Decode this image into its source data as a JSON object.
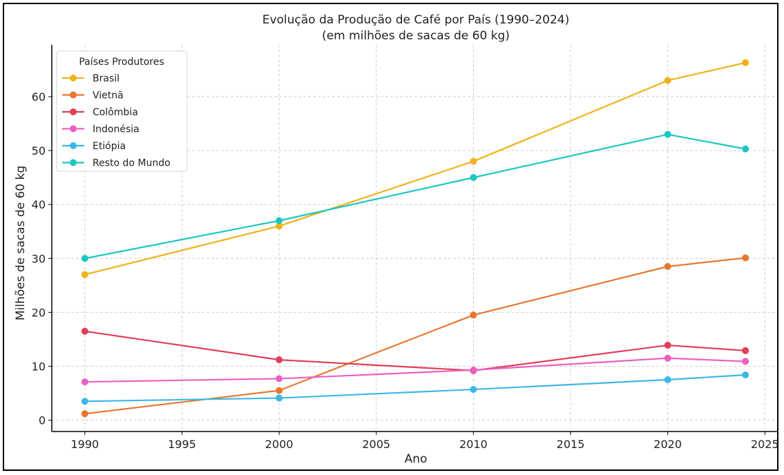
{
  "chart_data": {
    "type": "line",
    "title": "Evolução da Produção de Café por País (1990–2024)",
    "subtitle": "(em milhões de sacas de 60 kg)",
    "xlabel": "Ano",
    "ylabel": "Milhões de sacas de 60 kg",
    "xlim": [
      1988.3,
      2025.7
    ],
    "ylim": [
      -2.1,
      69.6
    ],
    "xticks": [
      1990,
      1995,
      2000,
      2005,
      2010,
      2015,
      2020,
      2025
    ],
    "yticks": [
      0,
      10,
      20,
      30,
      40,
      50,
      60
    ],
    "grid": true,
    "legend": {
      "title": "Países Produtores",
      "placement": "top-left"
    },
    "x": [
      1990,
      2000,
      2010,
      2020,
      2024
    ],
    "series": [
      {
        "name": "Brasil",
        "color": "#f0b21d",
        "values": [
          27.0,
          36.0,
          48.0,
          63.0,
          66.3
        ]
      },
      {
        "name": "Vietnã",
        "color": "#e8772e",
        "values": [
          1.2,
          5.5,
          19.5,
          28.5,
          30.1
        ]
      },
      {
        "name": "Colômbia",
        "color": "#e23e57",
        "values": [
          16.5,
          11.2,
          9.2,
          13.9,
          12.9
        ]
      },
      {
        "name": "Indonésia",
        "color": "#ec5fc4",
        "values": [
          7.1,
          7.7,
          9.3,
          11.5,
          10.9
        ]
      },
      {
        "name": "Etiópia",
        "color": "#3bb8e6",
        "values": [
          3.5,
          4.1,
          5.7,
          7.5,
          8.4
        ]
      },
      {
        "name": "Resto do Mundo",
        "color": "#1cc6c0",
        "values": [
          30.0,
          37.0,
          45.0,
          53.0,
          50.3
        ]
      }
    ]
  }
}
